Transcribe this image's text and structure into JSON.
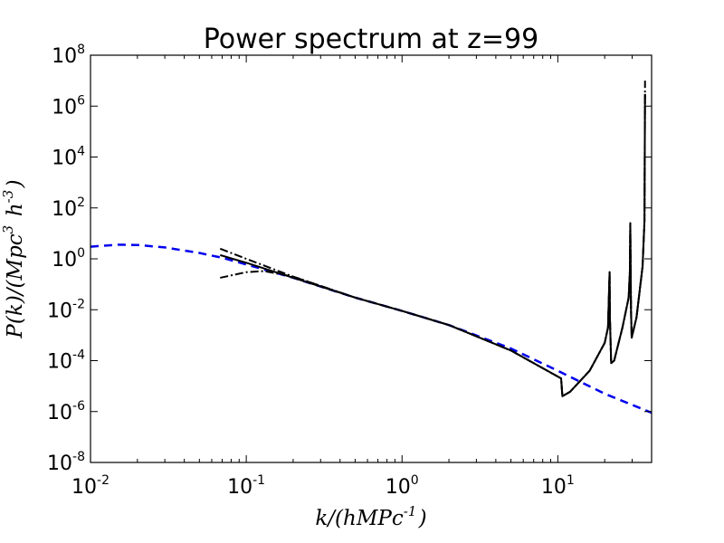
{
  "chart_data": {
    "type": "line",
    "title": "Power spectrum at z=99",
    "xlabel": "k/(hMPc^{-1})",
    "ylabel": "P(k)/(Mpc^{3} h^{-3})",
    "xscale": "log",
    "yscale": "log",
    "xlim": [
      0.01,
      40
    ],
    "ylim": [
      1e-08,
      100000000.0
    ],
    "x_ticks": [
      {
        "value": 0.01,
        "base": "10",
        "exp": "-2"
      },
      {
        "value": 0.1,
        "base": "10",
        "exp": "-1"
      },
      {
        "value": 1,
        "base": "10",
        "exp": "0"
      },
      {
        "value": 10,
        "base": "10",
        "exp": "1"
      }
    ],
    "y_ticks": [
      {
        "value": 1e-08,
        "base": "10",
        "exp": "-8"
      },
      {
        "value": 1e-06,
        "base": "10",
        "exp": "-6"
      },
      {
        "value": 0.0001,
        "base": "10",
        "exp": "-4"
      },
      {
        "value": 0.01,
        "base": "10",
        "exp": "-2"
      },
      {
        "value": 1,
        "base": "10",
        "exp": "0"
      },
      {
        "value": 100,
        "base": "10",
        "exp": "2"
      },
      {
        "value": 10000,
        "base": "10",
        "exp": "4"
      },
      {
        "value": 1000000,
        "base": "10",
        "exp": "6"
      },
      {
        "value": 100000000,
        "base": "10",
        "exp": "8"
      }
    ],
    "grid": false,
    "series": [
      {
        "style": "dashed",
        "color": "#0000ee",
        "points": [
          [
            0.01,
            3.0
          ],
          [
            0.015,
            3.6
          ],
          [
            0.02,
            3.5
          ],
          [
            0.03,
            2.8
          ],
          [
            0.05,
            1.7
          ],
          [
            0.07,
            1.1
          ],
          [
            0.1,
            0.6
          ],
          [
            0.2,
            0.18
          ],
          [
            0.5,
            0.03
          ],
          [
            1,
            0.009
          ],
          [
            2,
            0.0025
          ],
          [
            5,
            0.0003
          ],
          [
            10,
            4e-05
          ],
          [
            20,
            5e-06
          ],
          [
            40,
            9e-07
          ]
        ]
      },
      {
        "style": "solid",
        "color": "#000000",
        "points": [
          [
            0.068,
            1.4
          ],
          [
            0.1,
            0.7
          ],
          [
            0.2,
            0.18
          ],
          [
            0.5,
            0.03
          ],
          [
            1,
            0.009
          ],
          [
            2,
            0.0025
          ],
          [
            5,
            0.00025
          ],
          [
            10.5,
            2e-05
          ],
          [
            10.7,
            4e-06
          ],
          [
            12,
            6e-06
          ],
          [
            16,
            4e-05
          ],
          [
            20,
            0.0005
          ],
          [
            21,
            0.002
          ],
          [
            21.5,
            0.3
          ],
          [
            21.6,
            0.005
          ],
          [
            22,
            8e-05
          ],
          [
            23,
            0.0001
          ],
          [
            26,
            0.002
          ],
          [
            28.5,
            0.03
          ],
          [
            29,
            0.3
          ],
          [
            29.2,
            25
          ],
          [
            29.5,
            0.01
          ],
          [
            29.8,
            0.0008
          ],
          [
            32,
            0.005
          ],
          [
            35,
            0.5
          ],
          [
            36,
            30
          ],
          [
            36.3,
            3000000
          ]
        ]
      },
      {
        "style": "dashdot",
        "color": "#000000",
        "points": [
          [
            0.068,
            2.5
          ],
          [
            0.1,
            1.0
          ],
          [
            0.2,
            0.2
          ],
          [
            0.5,
            0.03
          ],
          [
            1,
            0.009
          ],
          [
            2,
            0.0025
          ],
          [
            5,
            0.00025
          ],
          [
            10.5,
            2e-05
          ],
          [
            10.7,
            4e-06
          ],
          [
            12,
            6e-06
          ],
          [
            16,
            4e-05
          ],
          [
            20,
            0.0005
          ],
          [
            21,
            0.002
          ],
          [
            21.5,
            0.3
          ],
          [
            21.6,
            0.005
          ],
          [
            22,
            8e-05
          ],
          [
            23,
            0.0001
          ],
          [
            26,
            0.002
          ],
          [
            28.5,
            0.03
          ],
          [
            29,
            0.3
          ],
          [
            29.2,
            25
          ],
          [
            29.5,
            0.01
          ],
          [
            29.8,
            0.0008
          ],
          [
            32,
            0.005
          ],
          [
            35,
            0.5
          ],
          [
            36,
            30
          ],
          [
            36.3,
            10000000
          ]
        ]
      },
      {
        "style": "dashdot",
        "color": "#000000",
        "points": [
          [
            0.068,
            0.18
          ],
          [
            0.1,
            0.3
          ],
          [
            0.13,
            0.33
          ],
          [
            0.2,
            0.2
          ],
          [
            0.5,
            0.03
          ],
          [
            1,
            0.009
          ],
          [
            2,
            0.0025
          ],
          [
            5,
            0.00025
          ],
          [
            10.5,
            2e-05
          ],
          [
            10.7,
            4e-06
          ],
          [
            12,
            6e-06
          ],
          [
            16,
            4e-05
          ],
          [
            20,
            0.0005
          ],
          [
            21,
            0.002
          ],
          [
            21.5,
            0.3
          ],
          [
            21.6,
            0.005
          ],
          [
            22,
            8e-05
          ],
          [
            23,
            0.0001
          ],
          [
            26,
            0.002
          ],
          [
            28.5,
            0.03
          ],
          [
            29,
            0.3
          ],
          [
            29.2,
            25
          ],
          [
            29.5,
            0.01
          ],
          [
            29.8,
            0.0008
          ],
          [
            32,
            0.005
          ],
          [
            35,
            0.5
          ],
          [
            36,
            30
          ],
          [
            36.3,
            3000000
          ]
        ]
      }
    ]
  }
}
